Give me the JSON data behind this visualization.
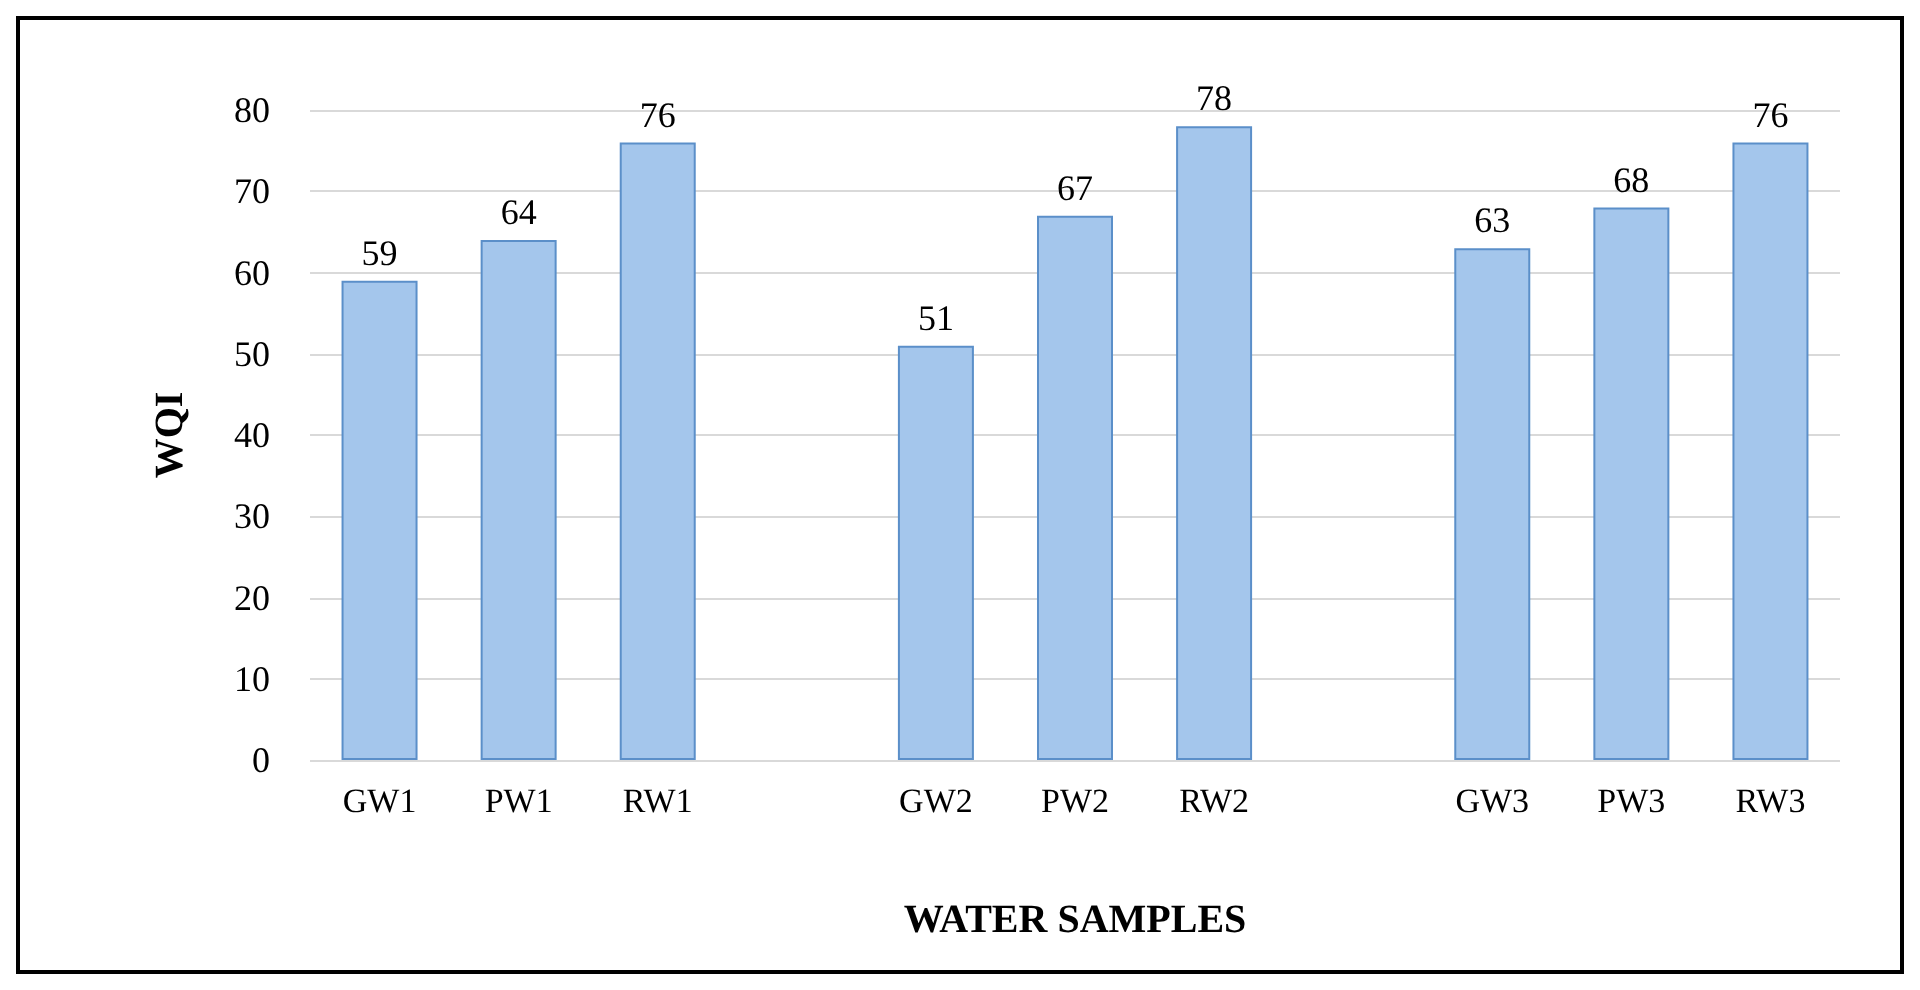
{
  "chart_data": {
    "type": "bar",
    "xlabel": "WATER SAMPLES",
    "ylabel": "WQI",
    "categories": [
      "GW1",
      "PW1",
      "RW1",
      null,
      "GW2",
      "PW2",
      "RW2",
      null,
      "GW3",
      "PW3",
      "RW3"
    ],
    "values": [
      59,
      64,
      76,
      null,
      51,
      67,
      78,
      null,
      63,
      68,
      76
    ],
    "color": "#a4c6ec",
    "ylim": [
      0,
      80
    ],
    "yticks": [
      0,
      10,
      20,
      30,
      40,
      50,
      60,
      70,
      80
    ],
    "grid": "y",
    "data_labels": true
  }
}
